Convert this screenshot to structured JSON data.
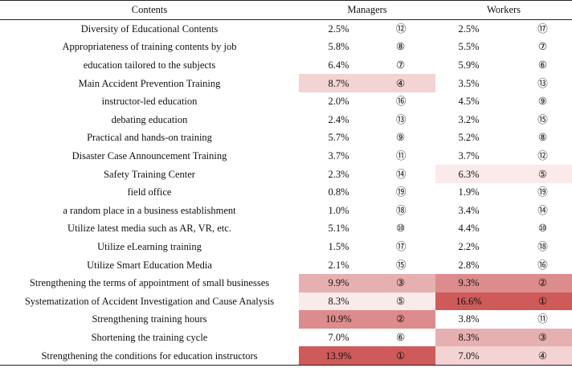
{
  "table": {
    "headers": {
      "contents": "Contents",
      "managers": "Managers",
      "workers": "Workers"
    },
    "rows": [
      {
        "label": "Diversity of Educational Contents",
        "m_pct": "2.5%",
        "m_rank": "⑫",
        "w_pct": "2.5%",
        "w_rank": "⑰",
        "m_shade": 0,
        "w_shade": 0
      },
      {
        "label": "Appropriateness of training contents by job",
        "m_pct": "5.8%",
        "m_rank": "⑧",
        "w_pct": "5.5%",
        "w_rank": "⑦",
        "m_shade": 0,
        "w_shade": 0
      },
      {
        "label": "education tailored to the subjects",
        "m_pct": "6.4%",
        "m_rank": "⑦",
        "w_pct": "5.9%",
        "w_rank": "⑥",
        "m_shade": 0,
        "w_shade": 0
      },
      {
        "label": "Main Accident Prevention Training",
        "m_pct": "8.7%",
        "m_rank": "④",
        "w_pct": "3.5%",
        "w_rank": "⑬",
        "m_shade": 2,
        "w_shade": 0
      },
      {
        "label": "instructor-led education",
        "m_pct": "2.0%",
        "m_rank": "⑯",
        "w_pct": "4.5%",
        "w_rank": "⑨",
        "m_shade": 0,
        "w_shade": 0
      },
      {
        "label": "debating education",
        "m_pct": "2.4%",
        "m_rank": "⑬",
        "w_pct": "3.2%",
        "w_rank": "⑮",
        "m_shade": 0,
        "w_shade": 0
      },
      {
        "label": "Practical and hands-on training",
        "m_pct": "5.7%",
        "m_rank": "⑨",
        "w_pct": "5.2%",
        "w_rank": "⑧",
        "m_shade": 0,
        "w_shade": 0
      },
      {
        "label": "Disaster Case Announcement Training",
        "m_pct": "3.7%",
        "m_rank": "⑪",
        "w_pct": "3.7%",
        "w_rank": "⑫",
        "m_shade": 0,
        "w_shade": 0
      },
      {
        "label": "Safety Training Center",
        "m_pct": "2.3%",
        "m_rank": "⑭",
        "w_pct": "6.3%",
        "w_rank": "⑤",
        "m_shade": 0,
        "w_shade": 1
      },
      {
        "label": "field office",
        "m_pct": "0.8%",
        "m_rank": "⑲",
        "w_pct": "1.9%",
        "w_rank": "⑲",
        "m_shade": 0,
        "w_shade": 0
      },
      {
        "label": "a random place in a business establishment",
        "m_pct": "1.0%",
        "m_rank": "⑱",
        "w_pct": "3.4%",
        "w_rank": "⑭",
        "m_shade": 0,
        "w_shade": 0
      },
      {
        "label": "Utilize latest media such as AR, VR, etc.",
        "m_pct": "5.1%",
        "m_rank": "⑩",
        "w_pct": "4.4%",
        "w_rank": "⑩",
        "m_shade": 0,
        "w_shade": 0
      },
      {
        "label": "Utilize eLearning training",
        "m_pct": "1.5%",
        "m_rank": "⑰",
        "w_pct": "2.2%",
        "w_rank": "⑱",
        "m_shade": 0,
        "w_shade": 0
      },
      {
        "label": "Utilize Smart Education Media",
        "m_pct": "2.1%",
        "m_rank": "⑮",
        "w_pct": "2.8%",
        "w_rank": "⑯",
        "m_shade": 0,
        "w_shade": 0
      },
      {
        "label": "Strengthening the terms of appointment of small businesses",
        "m_pct": "9.9%",
        "m_rank": "③",
        "w_pct": "9.3%",
        "w_rank": "②",
        "m_shade": 3,
        "w_shade": 4
      },
      {
        "label": "Systematization of Accident Investigation and Cause Analysis",
        "m_pct": "8.3%",
        "m_rank": "⑤",
        "w_pct": "16.6%",
        "w_rank": "①",
        "m_shade": 1,
        "w_shade": 5
      },
      {
        "label": "Strengthening training hours",
        "m_pct": "10.9%",
        "m_rank": "②",
        "w_pct": "3.8%",
        "w_rank": "⑪",
        "m_shade": 4,
        "w_shade": 0
      },
      {
        "label": "Shortening the training cycle",
        "m_pct": "7.0%",
        "m_rank": "⑥",
        "w_pct": "8.3%",
        "w_rank": "③",
        "m_shade": 0,
        "w_shade": 3
      },
      {
        "label": "Strengthening the conditions for education instructors",
        "m_pct": "13.9%",
        "m_rank": "①",
        "w_pct": "7.0%",
        "w_rank": "④",
        "m_shade": 5,
        "w_shade": 2
      }
    ],
    "shade_colors": [
      "#ffffff",
      "#fbeaea",
      "#f4d3d3",
      "#e7b0b0",
      "#dc8c8c",
      "#cf5a5a"
    ]
  }
}
